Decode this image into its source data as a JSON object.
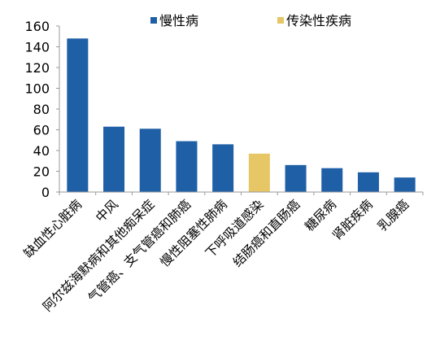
{
  "chart_data": {
    "type": "bar",
    "categories": [
      "缺血性心脏病",
      "中风",
      "阿尔兹海默病和其他痴呆症",
      "气管癌、支气管癌和肺癌",
      "慢性阻塞性肺病",
      "下呼吸道感染",
      "结肠癌和直肠癌",
      "糖尿病",
      "肾脏疾病",
      "乳腺癌"
    ],
    "values": [
      148,
      63,
      61,
      49,
      46,
      37,
      26,
      23,
      19,
      14
    ],
    "groups": [
      "慢性病",
      "慢性病",
      "慢性病",
      "慢性病",
      "慢性病",
      "传染性疾病",
      "慢性病",
      "慢性病",
      "慢性病",
      "慢性病"
    ],
    "legend": [
      {
        "name": "慢性病",
        "color": "#1f5fa6"
      },
      {
        "name": "传染性疾病",
        "color": "#e6c665"
      }
    ],
    "ylim": [
      0,
      160
    ],
    "yticks": [
      0,
      20,
      40,
      60,
      80,
      100,
      120,
      140,
      160
    ],
    "legend_position": "top",
    "grid": false,
    "title": "",
    "xlabel": "",
    "ylabel": ""
  }
}
